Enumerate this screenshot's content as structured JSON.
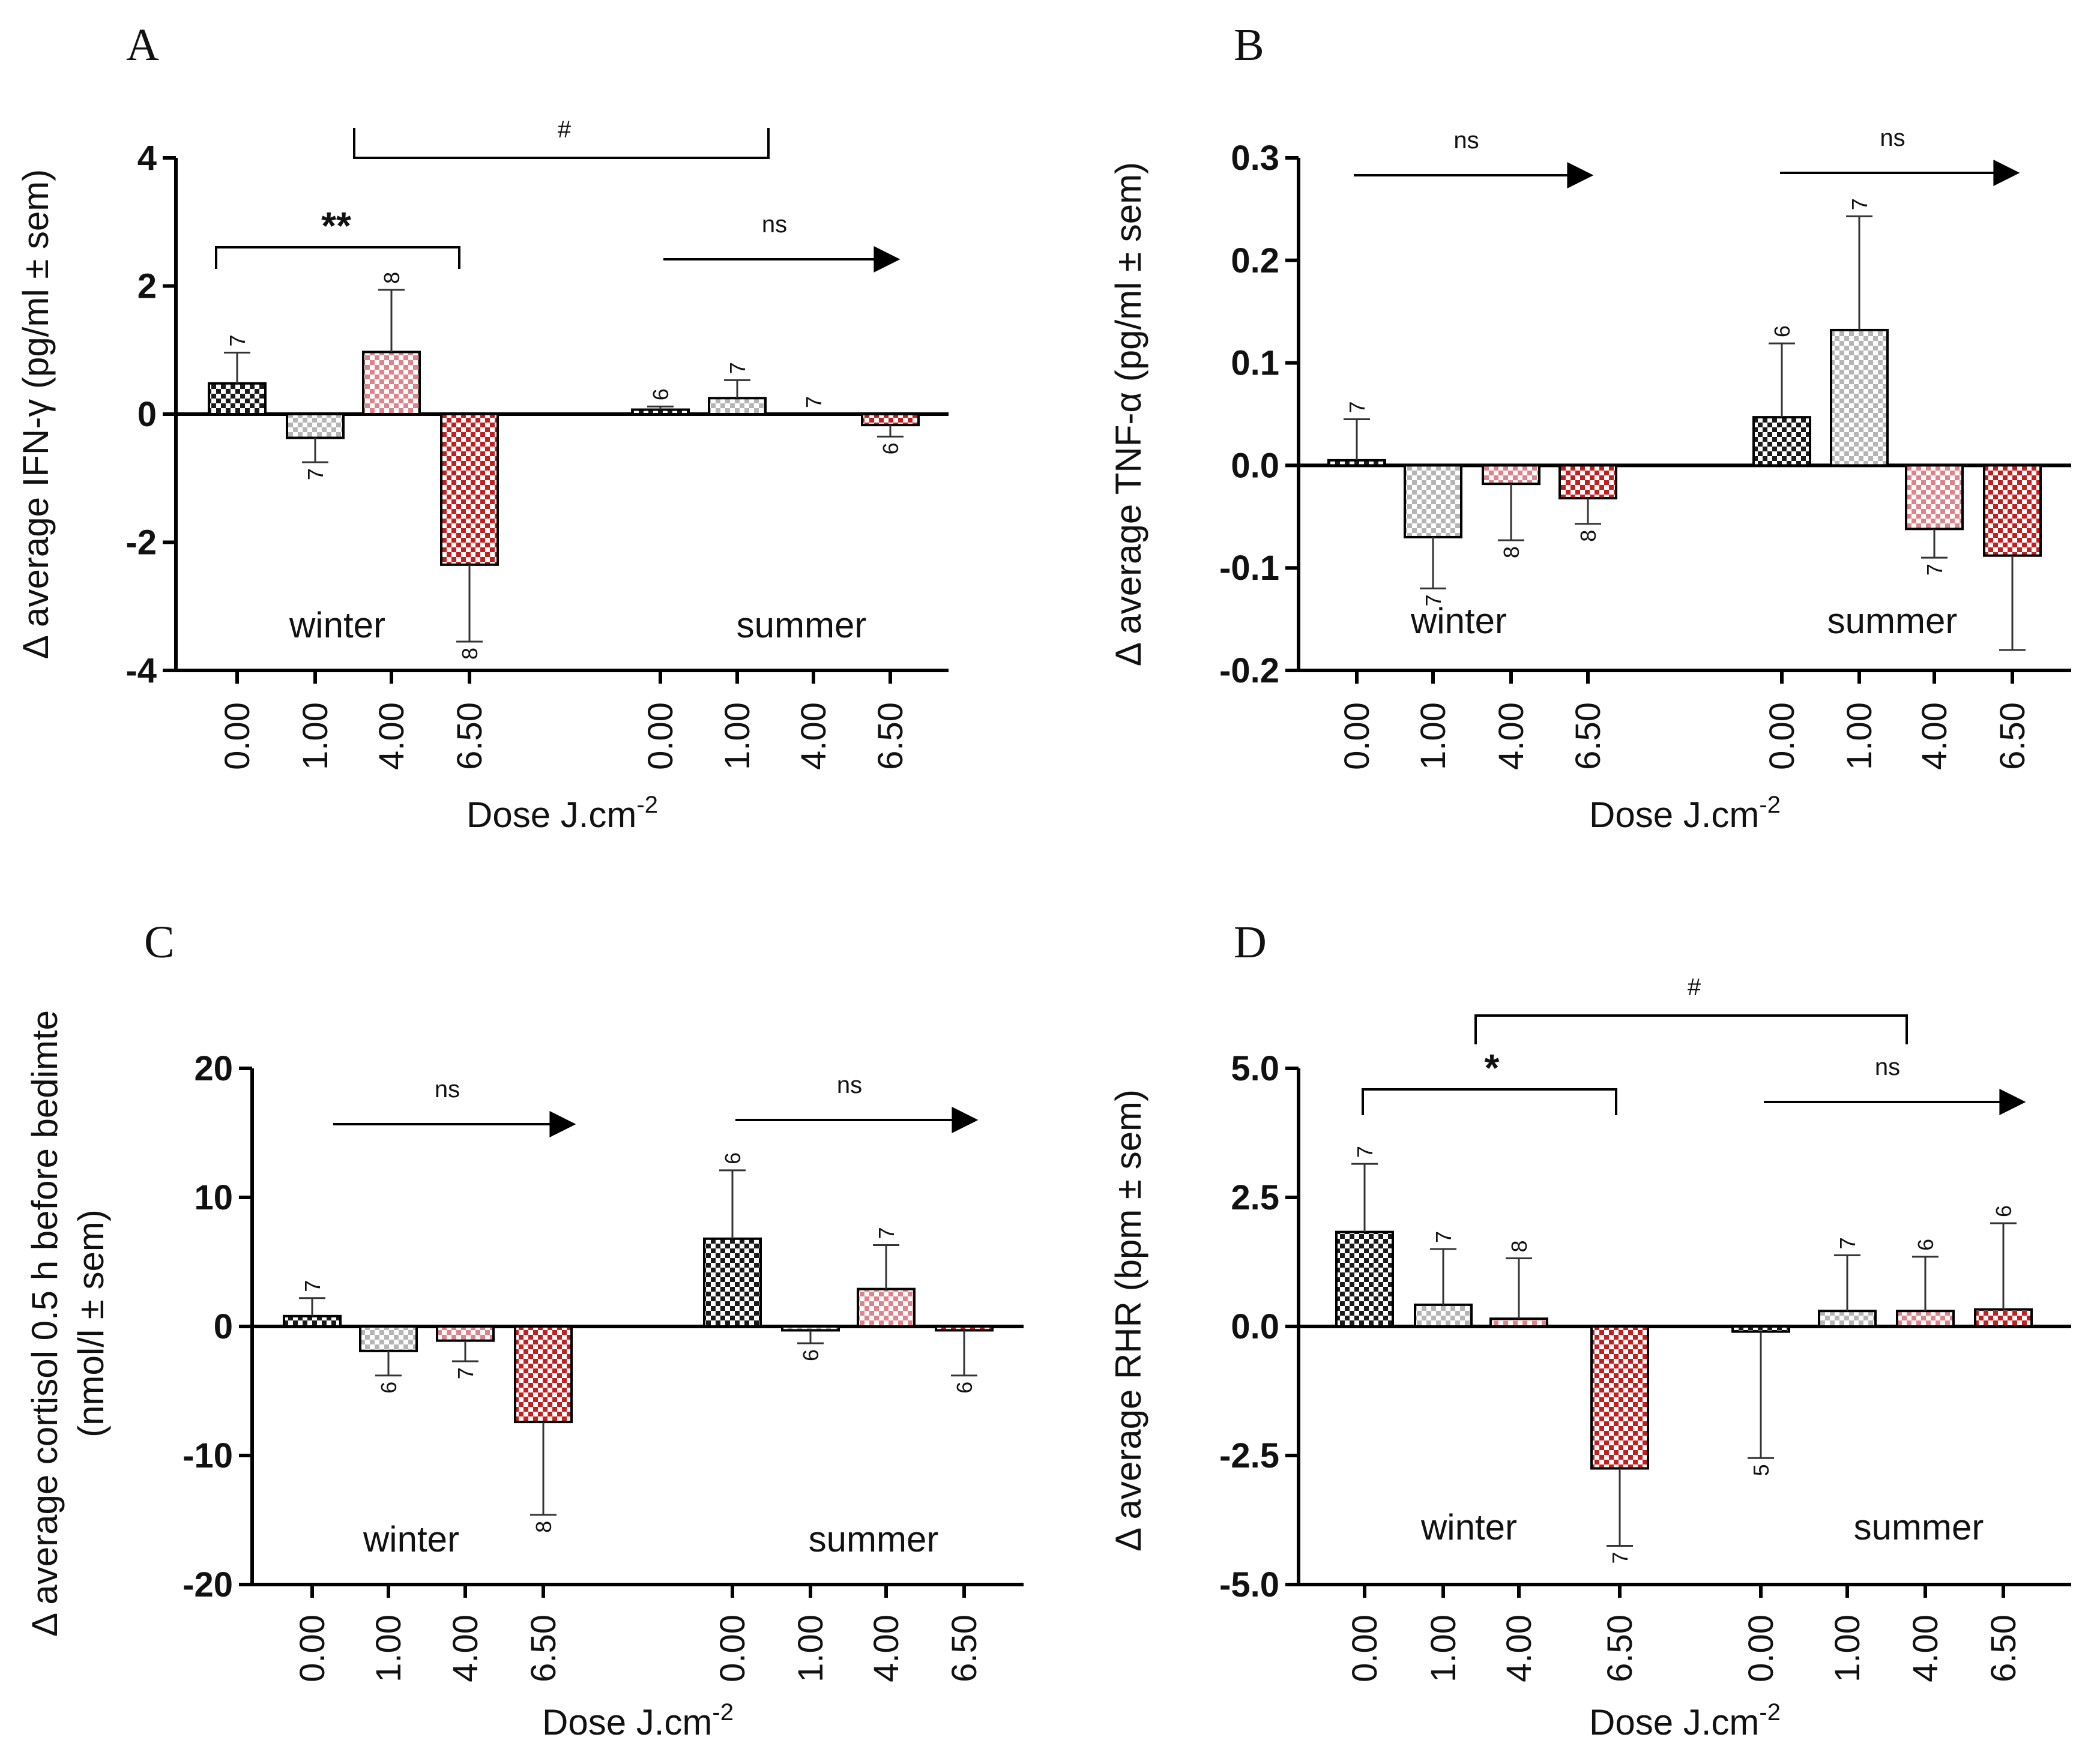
{
  "colors": {
    "black_check": "#1a1a1a",
    "gray_check": "#b5b5b5",
    "pink_check": "#e0828a",
    "red_check": "#c41e1e",
    "background": "#ffffff"
  },
  "xlabel_main": "Dose J.cm",
  "xlabel_sup": "-2",
  "categories": [
    "0.00",
    "1.00",
    "4.00",
    "6.50"
  ],
  "group_names": [
    "winter",
    "summer"
  ],
  "chart_data": [
    {
      "panel": "A",
      "type": "bar",
      "ylabel": "Δ average IFN-γ (pg/ml ± sem)",
      "ylim": [
        -4,
        4
      ],
      "yticks": [
        4,
        2,
        0,
        -2,
        -4
      ],
      "ytick_labels": [
        "4",
        "2",
        "0",
        "-2",
        "-4"
      ],
      "groups": [
        {
          "name": "winter",
          "values": [
            0.48,
            -0.37,
            0.97,
            -2.35
          ],
          "errors": [
            0.48,
            0.38,
            0.97,
            1.2
          ],
          "n": [
            "7",
            "7",
            "8",
            "8"
          ]
        },
        {
          "name": "summer",
          "values": [
            0.07,
            0.25,
            0.0,
            -0.17
          ],
          "errors": [
            0.05,
            0.28,
            0.0,
            0.18
          ],
          "n": [
            "6",
            "7",
            "7",
            "6"
          ]
        }
      ],
      "annotations": {
        "winter_sig": "**",
        "season_sig": "#",
        "winter_arrow": "",
        "summer_arrow": "ns"
      }
    },
    {
      "panel": "B",
      "type": "bar",
      "ylabel": "Δ average TNF-α (pg/ml ± sem)",
      "ylim": [
        -0.2,
        0.3
      ],
      "yticks": [
        0.3,
        0.2,
        0.1,
        0.0,
        -0.1,
        -0.2
      ],
      "ytick_labels": [
        "0.3",
        "0.2",
        "0.1",
        "0.0",
        "-0.1",
        "-0.2"
      ],
      "groups": [
        {
          "name": "winter",
          "values": [
            0.005,
            -0.07,
            -0.018,
            -0.032
          ],
          "errors": [
            0.04,
            0.05,
            0.055,
            0.025
          ],
          "n": [
            "7",
            "7",
            "8",
            "8"
          ]
        },
        {
          "name": "summer",
          "values": [
            0.047,
            0.132,
            -0.062,
            -0.088
          ],
          "errors": [
            0.072,
            0.111,
            0.028,
            0.092
          ],
          "n": [
            "6",
            "7",
            "7",
            ""
          ]
        }
      ],
      "annotations": {
        "winter_sig": "",
        "season_sig": "",
        "winter_arrow": "ns",
        "summer_arrow": "ns"
      }
    },
    {
      "panel": "C",
      "type": "bar",
      "ylabel": "Δ average cortisol 0.5 h before bedimte",
      "ylabel2": "(nmol/l ± sem)",
      "ylim": [
        -20,
        20
      ],
      "yticks": [
        20,
        10,
        0,
        -10,
        -20
      ],
      "ytick_labels": [
        "20",
        "10",
        "0",
        "-10",
        "-20"
      ],
      "groups": [
        {
          "name": "winter",
          "values": [
            0.8,
            -1.9,
            -1.1,
            -7.4
          ],
          "errors": [
            1.4,
            1.9,
            1.6,
            7.2
          ],
          "n": [
            "7",
            "6",
            "7",
            "8"
          ]
        },
        {
          "name": "summer",
          "values": [
            6.8,
            -0.3,
            2.9,
            -0.3
          ],
          "errors": [
            5.3,
            1.0,
            3.4,
            3.5
          ],
          "n": [
            "6",
            "6",
            "7",
            "6"
          ]
        }
      ],
      "annotations": {
        "winter_sig": "",
        "season_sig": "",
        "winter_arrow": "ns",
        "summer_arrow": "ns"
      }
    },
    {
      "panel": "D",
      "type": "bar",
      "ylabel": "Δ average RHR (bpm ± sem)",
      "ylim": [
        -5,
        5
      ],
      "yticks": [
        5,
        2.5,
        0,
        -2.5,
        -5
      ],
      "ytick_labels": [
        "5.0",
        "2.5",
        "0.0",
        "-2.5",
        "-5.0"
      ],
      "groups": [
        {
          "name": "winter",
          "values": [
            1.83,
            0.42,
            0.15,
            -2.75
          ],
          "errors": [
            1.32,
            1.08,
            1.17,
            1.5
          ],
          "n": [
            "7",
            "7",
            "8",
            "7"
          ]
        },
        {
          "name": "summer",
          "values": [
            -0.1,
            0.3,
            0.3,
            0.33
          ],
          "errors": [
            2.45,
            1.08,
            1.05,
            1.67
          ],
          "n": [
            "5",
            "7",
            "6",
            "6"
          ]
        }
      ],
      "annotations": {
        "winter_sig": "*",
        "season_sig": "#",
        "winter_arrow": "",
        "summer_arrow": "ns"
      }
    }
  ]
}
